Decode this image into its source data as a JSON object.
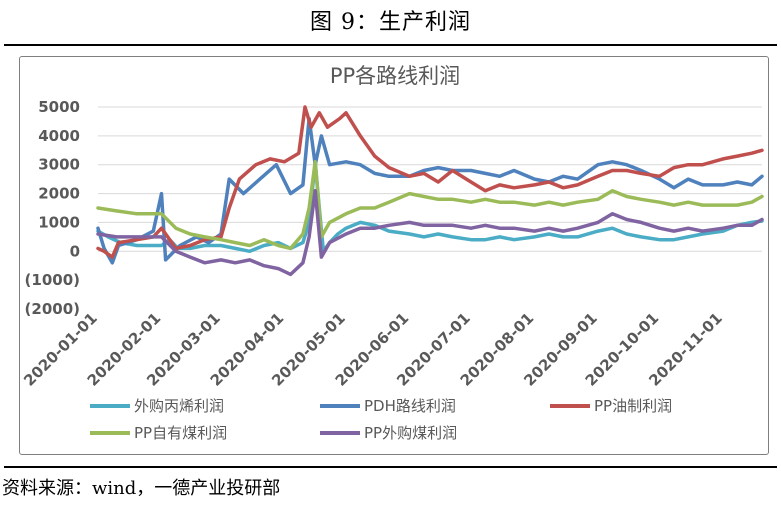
{
  "figure": {
    "caption": "图 9：生产利润",
    "source": "资料来源：wind，一德产业投研部"
  },
  "chart_data": {
    "type": "line",
    "title": "PP各路线利润",
    "ylim": [
      -2000,
      5000
    ],
    "yticks": [
      5000,
      4000,
      3000,
      2000,
      1000,
      0,
      -1000,
      -2000
    ],
    "ytick_labels": [
      "5000",
      "4000",
      "3000",
      "2000",
      "1000",
      "0",
      "(1000)",
      "(2000)"
    ],
    "ytick_colors": [
      "#595959",
      "#595959",
      "#595959",
      "#595959",
      "#595959",
      "#595959",
      "#ff0000",
      "#ff0000"
    ],
    "x_range": [
      "2020-01-01",
      "2020-11-20"
    ],
    "xtick_labels": [
      "2020-01-01",
      "2020-02-01",
      "2020-03-01",
      "2020-04-01",
      "2020-05-01",
      "2020-06-01",
      "2020-07-01",
      "2020-08-01",
      "2020-09-01",
      "2020-10-01",
      "2020-11-01"
    ],
    "grid": "horizontal",
    "legend_position": "bottom",
    "series": [
      {
        "name": "外购丙烯利润",
        "color": "#4bacc6",
        "points": [
          [
            "2020-01-01",
            700
          ],
          [
            "2020-01-06",
            500
          ],
          [
            "2020-01-12",
            300
          ],
          [
            "2020-01-20",
            200
          ],
          [
            "2020-02-01",
            200
          ],
          [
            "2020-02-05",
            400
          ],
          [
            "2020-02-09",
            100
          ],
          [
            "2020-02-15",
            100
          ],
          [
            "2020-02-22",
            200
          ],
          [
            "2020-03-01",
            200
          ],
          [
            "2020-03-08",
            100
          ],
          [
            "2020-03-15",
            0
          ],
          [
            "2020-03-22",
            200
          ],
          [
            "2020-03-29",
            300
          ],
          [
            "2020-04-04",
            100
          ],
          [
            "2020-04-10",
            300
          ],
          [
            "2020-04-13",
            1000
          ],
          [
            "2020-04-16",
            3100
          ],
          [
            "2020-04-18",
            1500
          ],
          [
            "2020-04-20",
            0
          ],
          [
            "2020-04-23",
            300
          ],
          [
            "2020-04-27",
            600
          ],
          [
            "2020-05-01",
            800
          ],
          [
            "2020-05-08",
            1000
          ],
          [
            "2020-05-15",
            900
          ],
          [
            "2020-05-22",
            700
          ],
          [
            "2020-06-01",
            600
          ],
          [
            "2020-06-08",
            500
          ],
          [
            "2020-06-15",
            600
          ],
          [
            "2020-06-22",
            500
          ],
          [
            "2020-07-01",
            400
          ],
          [
            "2020-07-08",
            400
          ],
          [
            "2020-07-15",
            500
          ],
          [
            "2020-07-22",
            400
          ],
          [
            "2020-08-01",
            500
          ],
          [
            "2020-08-08",
            600
          ],
          [
            "2020-08-15",
            500
          ],
          [
            "2020-08-22",
            500
          ],
          [
            "2020-09-01",
            700
          ],
          [
            "2020-09-08",
            800
          ],
          [
            "2020-09-15",
            600
          ],
          [
            "2020-09-22",
            500
          ],
          [
            "2020-10-01",
            400
          ],
          [
            "2020-10-08",
            400
          ],
          [
            "2020-10-15",
            500
          ],
          [
            "2020-10-22",
            600
          ],
          [
            "2020-11-01",
            700
          ],
          [
            "2020-11-08",
            900
          ],
          [
            "2020-11-15",
            1000
          ],
          [
            "2020-11-20",
            1050
          ]
        ]
      },
      {
        "name": "PDH路线利润",
        "color": "#4f81bd",
        "points": [
          [
            "2020-01-01",
            800
          ],
          [
            "2020-01-04",
            100
          ],
          [
            "2020-01-08",
            -400
          ],
          [
            "2020-01-11",
            200
          ],
          [
            "2020-01-20",
            400
          ],
          [
            "2020-01-28",
            700
          ],
          [
            "2020-02-01",
            2000
          ],
          [
            "2020-02-03",
            -300
          ],
          [
            "2020-02-10",
            200
          ],
          [
            "2020-02-18",
            500
          ],
          [
            "2020-02-24",
            300
          ],
          [
            "2020-03-01",
            600
          ],
          [
            "2020-03-05",
            2500
          ],
          [
            "2020-03-12",
            2000
          ],
          [
            "2020-03-20",
            2500
          ],
          [
            "2020-03-28",
            3000
          ],
          [
            "2020-04-04",
            2000
          ],
          [
            "2020-04-10",
            2300
          ],
          [
            "2020-04-13",
            4600
          ],
          [
            "2020-04-16",
            3000
          ],
          [
            "2020-04-19",
            4000
          ],
          [
            "2020-04-23",
            3000
          ],
          [
            "2020-05-01",
            3100
          ],
          [
            "2020-05-08",
            3000
          ],
          [
            "2020-05-15",
            2700
          ],
          [
            "2020-05-22",
            2600
          ],
          [
            "2020-06-01",
            2600
          ],
          [
            "2020-06-08",
            2800
          ],
          [
            "2020-06-15",
            2900
          ],
          [
            "2020-06-22",
            2800
          ],
          [
            "2020-07-01",
            2800
          ],
          [
            "2020-07-08",
            2700
          ],
          [
            "2020-07-15",
            2600
          ],
          [
            "2020-07-22",
            2800
          ],
          [
            "2020-08-01",
            2500
          ],
          [
            "2020-08-08",
            2400
          ],
          [
            "2020-08-15",
            2600
          ],
          [
            "2020-08-22",
            2500
          ],
          [
            "2020-09-01",
            3000
          ],
          [
            "2020-09-08",
            3100
          ],
          [
            "2020-09-15",
            3000
          ],
          [
            "2020-09-22",
            2800
          ],
          [
            "2020-10-01",
            2500
          ],
          [
            "2020-10-08",
            2200
          ],
          [
            "2020-10-15",
            2500
          ],
          [
            "2020-10-22",
            2300
          ],
          [
            "2020-11-01",
            2300
          ],
          [
            "2020-11-08",
            2400
          ],
          [
            "2020-11-15",
            2300
          ],
          [
            "2020-11-20",
            2600
          ]
        ]
      },
      {
        "name": "PP油制利润",
        "color": "#c0504d",
        "points": [
          [
            "2020-01-01",
            100
          ],
          [
            "2020-01-04",
            0
          ],
          [
            "2020-01-08",
            -200
          ],
          [
            "2020-01-11",
            300
          ],
          [
            "2020-01-20",
            400
          ],
          [
            "2020-01-28",
            500
          ],
          [
            "2020-02-01",
            800
          ],
          [
            "2020-02-08",
            100
          ],
          [
            "2020-02-15",
            200
          ],
          [
            "2020-02-22",
            400
          ],
          [
            "2020-03-01",
            500
          ],
          [
            "2020-03-05",
            1500
          ],
          [
            "2020-03-10",
            2500
          ],
          [
            "2020-03-18",
            3000
          ],
          [
            "2020-03-25",
            3200
          ],
          [
            "2020-04-01",
            3100
          ],
          [
            "2020-04-08",
            3400
          ],
          [
            "2020-04-11",
            5000
          ],
          [
            "2020-04-14",
            4300
          ],
          [
            "2020-04-18",
            4800
          ],
          [
            "2020-04-22",
            4300
          ],
          [
            "2020-04-28",
            4600
          ],
          [
            "2020-05-01",
            4800
          ],
          [
            "2020-05-08",
            4000
          ],
          [
            "2020-05-15",
            3300
          ],
          [
            "2020-05-22",
            2900
          ],
          [
            "2020-06-01",
            2600
          ],
          [
            "2020-06-08",
            2700
          ],
          [
            "2020-06-15",
            2400
          ],
          [
            "2020-06-22",
            2800
          ],
          [
            "2020-07-01",
            2400
          ],
          [
            "2020-07-08",
            2100
          ],
          [
            "2020-07-15",
            2300
          ],
          [
            "2020-07-22",
            2200
          ],
          [
            "2020-08-01",
            2300
          ],
          [
            "2020-08-08",
            2400
          ],
          [
            "2020-08-15",
            2200
          ],
          [
            "2020-08-22",
            2300
          ],
          [
            "2020-09-01",
            2600
          ],
          [
            "2020-09-08",
            2800
          ],
          [
            "2020-09-15",
            2800
          ],
          [
            "2020-09-22",
            2700
          ],
          [
            "2020-10-01",
            2600
          ],
          [
            "2020-10-08",
            2900
          ],
          [
            "2020-10-15",
            3000
          ],
          [
            "2020-10-22",
            3000
          ],
          [
            "2020-11-01",
            3200
          ],
          [
            "2020-11-08",
            3300
          ],
          [
            "2020-11-15",
            3400
          ],
          [
            "2020-11-20",
            3500
          ]
        ]
      },
      {
        "name": "PP自有煤利润",
        "color": "#9bbb59",
        "points": [
          [
            "2020-01-01",
            1500
          ],
          [
            "2020-01-10",
            1400
          ],
          [
            "2020-01-20",
            1300
          ],
          [
            "2020-02-01",
            1300
          ],
          [
            "2020-02-08",
            800
          ],
          [
            "2020-02-15",
            600
          ],
          [
            "2020-02-22",
            500
          ],
          [
            "2020-03-01",
            400
          ],
          [
            "2020-03-08",
            300
          ],
          [
            "2020-03-15",
            200
          ],
          [
            "2020-03-22",
            400
          ],
          [
            "2020-03-29",
            200
          ],
          [
            "2020-04-04",
            100
          ],
          [
            "2020-04-10",
            600
          ],
          [
            "2020-04-13",
            1500
          ],
          [
            "2020-04-16",
            3100
          ],
          [
            "2020-04-19",
            500
          ],
          [
            "2020-04-23",
            1000
          ],
          [
            "2020-05-01",
            1300
          ],
          [
            "2020-05-08",
            1500
          ],
          [
            "2020-05-15",
            1500
          ],
          [
            "2020-05-22",
            1700
          ],
          [
            "2020-06-01",
            2000
          ],
          [
            "2020-06-08",
            1900
          ],
          [
            "2020-06-15",
            1800
          ],
          [
            "2020-06-22",
            1800
          ],
          [
            "2020-07-01",
            1700
          ],
          [
            "2020-07-08",
            1800
          ],
          [
            "2020-07-15",
            1700
          ],
          [
            "2020-07-22",
            1700
          ],
          [
            "2020-08-01",
            1600
          ],
          [
            "2020-08-08",
            1700
          ],
          [
            "2020-08-15",
            1600
          ],
          [
            "2020-08-22",
            1700
          ],
          [
            "2020-09-01",
            1800
          ],
          [
            "2020-09-08",
            2100
          ],
          [
            "2020-09-15",
            1900
          ],
          [
            "2020-09-22",
            1800
          ],
          [
            "2020-10-01",
            1700
          ],
          [
            "2020-10-08",
            1600
          ],
          [
            "2020-10-15",
            1700
          ],
          [
            "2020-10-22",
            1600
          ],
          [
            "2020-11-01",
            1600
          ],
          [
            "2020-11-08",
            1600
          ],
          [
            "2020-11-15",
            1700
          ],
          [
            "2020-11-20",
            1900
          ]
        ]
      },
      {
        "name": "PP外购煤利润",
        "color": "#8064a2",
        "points": [
          [
            "2020-01-01",
            600
          ],
          [
            "2020-01-10",
            500
          ],
          [
            "2020-01-20",
            500
          ],
          [
            "2020-02-01",
            500
          ],
          [
            "2020-02-08",
            0
          ],
          [
            "2020-02-15",
            -200
          ],
          [
            "2020-02-22",
            -400
          ],
          [
            "2020-03-01",
            -300
          ],
          [
            "2020-03-08",
            -400
          ],
          [
            "2020-03-15",
            -300
          ],
          [
            "2020-03-22",
            -500
          ],
          [
            "2020-03-29",
            -600
          ],
          [
            "2020-04-04",
            -800
          ],
          [
            "2020-04-10",
            -400
          ],
          [
            "2020-04-13",
            500
          ],
          [
            "2020-04-16",
            2100
          ],
          [
            "2020-04-19",
            -200
          ],
          [
            "2020-04-23",
            300
          ],
          [
            "2020-05-01",
            600
          ],
          [
            "2020-05-08",
            800
          ],
          [
            "2020-05-15",
            800
          ],
          [
            "2020-05-22",
            900
          ],
          [
            "2020-06-01",
            1000
          ],
          [
            "2020-06-08",
            900
          ],
          [
            "2020-06-15",
            900
          ],
          [
            "2020-06-22",
            900
          ],
          [
            "2020-07-01",
            800
          ],
          [
            "2020-07-08",
            900
          ],
          [
            "2020-07-15",
            800
          ],
          [
            "2020-07-22",
            800
          ],
          [
            "2020-08-01",
            700
          ],
          [
            "2020-08-08",
            800
          ],
          [
            "2020-08-15",
            700
          ],
          [
            "2020-08-22",
            800
          ],
          [
            "2020-09-01",
            1000
          ],
          [
            "2020-09-08",
            1300
          ],
          [
            "2020-09-15",
            1100
          ],
          [
            "2020-09-22",
            1000
          ],
          [
            "2020-10-01",
            800
          ],
          [
            "2020-10-08",
            700
          ],
          [
            "2020-10-15",
            800
          ],
          [
            "2020-10-22",
            700
          ],
          [
            "2020-11-01",
            800
          ],
          [
            "2020-11-08",
            900
          ],
          [
            "2020-11-15",
            900
          ],
          [
            "2020-11-20",
            1100
          ]
        ]
      }
    ]
  }
}
